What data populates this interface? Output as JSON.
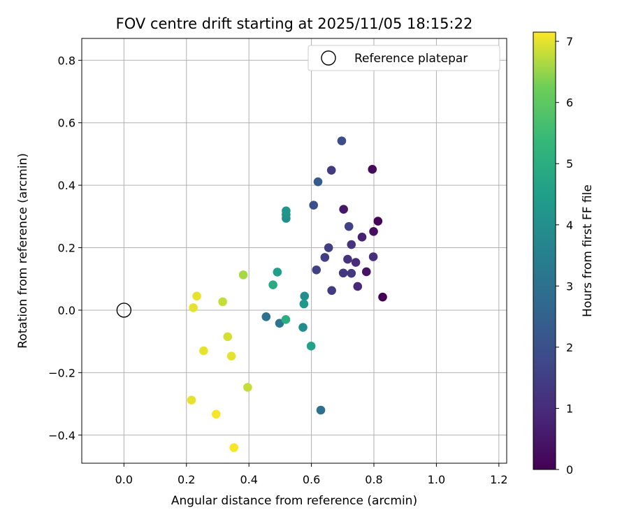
{
  "chart_data": {
    "type": "scatter",
    "title": "FOV centre drift starting at 2025/11/05 18:15:22",
    "xlabel": "Angular distance from reference (arcmin)",
    "ylabel": "Rotation from reference (arcmin)",
    "xlim": [
      -0.135,
      1.225
    ],
    "ylim": [
      -0.49,
      0.87
    ],
    "xticks": [
      0.0,
      0.2,
      0.4,
      0.6,
      0.8,
      1.0,
      1.2
    ],
    "xtick_labels": [
      "0.0",
      "0.2",
      "0.4",
      "0.6",
      "0.8",
      "1.0",
      "1.2"
    ],
    "yticks": [
      -0.4,
      -0.2,
      0.0,
      0.2,
      0.4,
      0.6,
      0.8
    ],
    "ytick_labels": [
      "−0.4",
      "−0.2",
      "0.0",
      "0.2",
      "0.4",
      "0.6",
      "0.8"
    ],
    "grid": true,
    "legend": {
      "position": "upper right",
      "entries": [
        {
          "label": "Reference platepar",
          "marker": "open-circle"
        }
      ]
    },
    "reference_point": {
      "x": 0.0,
      "y": 0.0
    },
    "colorbar": {
      "label": "Hours from first FF file",
      "range": [
        0,
        7.15
      ],
      "ticks": [
        0,
        1,
        2,
        3,
        4,
        5,
        6,
        7
      ],
      "tick_labels": [
        "0",
        "1",
        "2",
        "3",
        "4",
        "5",
        "6",
        "7"
      ],
      "colormap": "viridis"
    },
    "series": [
      {
        "name": "drift",
        "points": [
          {
            "x": 0.828,
            "y": 0.042,
            "t": 0.0
          },
          {
            "x": 0.813,
            "y": 0.285,
            "t": 0.1
          },
          {
            "x": 0.795,
            "y": 0.451,
            "t": 0.2
          },
          {
            "x": 0.799,
            "y": 0.252,
            "t": 0.3
          },
          {
            "x": 0.776,
            "y": 0.123,
            "t": 0.4
          },
          {
            "x": 0.703,
            "y": 0.323,
            "t": 0.5
          },
          {
            "x": 0.762,
            "y": 0.234,
            "t": 0.7
          },
          {
            "x": 0.748,
            "y": 0.076,
            "t": 0.9
          },
          {
            "x": 0.742,
            "y": 0.153,
            "t": 1.0
          },
          {
            "x": 0.798,
            "y": 0.171,
            "t": 1.1
          },
          {
            "x": 0.728,
            "y": 0.21,
            "t": 1.2
          },
          {
            "x": 0.716,
            "y": 0.163,
            "t": 1.2
          },
          {
            "x": 0.702,
            "y": 0.119,
            "t": 1.3
          },
          {
            "x": 0.728,
            "y": 0.118,
            "t": 1.3
          },
          {
            "x": 0.665,
            "y": 0.063,
            "t": 1.4
          },
          {
            "x": 0.664,
            "y": 0.448,
            "t": 1.4
          },
          {
            "x": 0.643,
            "y": 0.169,
            "t": 1.5
          },
          {
            "x": 0.655,
            "y": 0.2,
            "t": 1.5
          },
          {
            "x": 0.72,
            "y": 0.268,
            "t": 1.6
          },
          {
            "x": 0.616,
            "y": 0.129,
            "t": 1.6
          },
          {
            "x": 0.697,
            "y": 0.542,
            "t": 1.9
          },
          {
            "x": 0.607,
            "y": 0.336,
            "t": 2.0
          },
          {
            "x": 0.621,
            "y": 0.411,
            "t": 2.3
          },
          {
            "x": 0.455,
            "y": -0.021,
            "t": 3.0
          },
          {
            "x": 0.63,
            "y": -0.32,
            "t": 3.0
          },
          {
            "x": 0.498,
            "y": -0.042,
            "t": 3.1
          },
          {
            "x": 0.578,
            "y": 0.045,
            "t": 3.9
          },
          {
            "x": 0.573,
            "y": -0.055,
            "t": 3.9
          },
          {
            "x": 0.519,
            "y": 0.294,
            "t": 4.0
          },
          {
            "x": 0.519,
            "y": 0.306,
            "t": 4.1
          },
          {
            "x": 0.519,
            "y": 0.318,
            "t": 4.2
          },
          {
            "x": 0.576,
            "y": 0.02,
            "t": 4.3
          },
          {
            "x": 0.491,
            "y": 0.122,
            "t": 4.5
          },
          {
            "x": 0.599,
            "y": -0.115,
            "t": 4.6
          },
          {
            "x": 0.477,
            "y": 0.081,
            "t": 4.9
          },
          {
            "x": 0.518,
            "y": -0.03,
            "t": 5.0
          },
          {
            "x": 0.382,
            "y": 0.113,
            "t": 6.6
          },
          {
            "x": 0.316,
            "y": 0.027,
            "t": 6.8
          },
          {
            "x": 0.396,
            "y": -0.247,
            "t": 6.8
          },
          {
            "x": 0.332,
            "y": -0.085,
            "t": 6.9
          },
          {
            "x": 0.233,
            "y": 0.045,
            "t": 7.0
          },
          {
            "x": 0.222,
            "y": 0.008,
            "t": 7.0
          },
          {
            "x": 0.255,
            "y": -0.13,
            "t": 7.0
          },
          {
            "x": 0.344,
            "y": -0.147,
            "t": 7.0
          },
          {
            "x": 0.216,
            "y": -0.288,
            "t": 7.0
          },
          {
            "x": 0.295,
            "y": -0.333,
            "t": 7.1
          },
          {
            "x": 0.352,
            "y": -0.44,
            "t": 7.1
          }
        ]
      }
    ]
  }
}
